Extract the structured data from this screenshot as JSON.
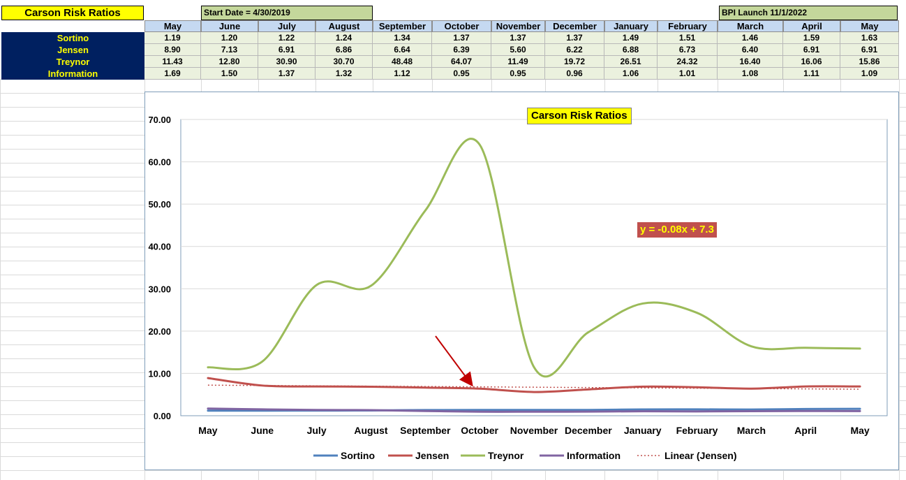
{
  "table": {
    "title": "Carson Risk Ratios",
    "start_note": "Start Date = 4/30/2019",
    "launch_note": "BPI Launch 11/1/2022",
    "months": [
      "May",
      "June",
      "July",
      "August",
      "September",
      "October",
      "November",
      "December",
      "January",
      "February",
      "March",
      "April",
      "May"
    ],
    "rows": [
      {
        "label": "Sortino",
        "values": [
          "1.19",
          "1.20",
          "1.22",
          "1.24",
          "1.34",
          "1.37",
          "1.37",
          "1.37",
          "1.49",
          "1.51",
          "1.46",
          "1.59",
          "1.63"
        ]
      },
      {
        "label": "Jensen",
        "values": [
          "8.90",
          "7.13",
          "6.91",
          "6.86",
          "6.64",
          "6.39",
          "5.60",
          "6.22",
          "6.88",
          "6.73",
          "6.40",
          "6.91",
          "6.91"
        ]
      },
      {
        "label": "Treynor",
        "values": [
          "11.43",
          "12.80",
          "30.90",
          "30.70",
          "48.48",
          "64.07",
          "11.49",
          "19.72",
          "26.51",
          "24.32",
          "16.40",
          "16.06",
          "15.86"
        ]
      },
      {
        "label": "Information",
        "values": [
          "1.69",
          "1.50",
          "1.37",
          "1.32",
          "1.12",
          "0.95",
          "0.95",
          "0.96",
          "1.06",
          "1.01",
          "1.08",
          "1.11",
          "1.09"
        ]
      }
    ]
  },
  "chart_data": {
    "type": "line",
    "title": "Carson Risk Ratios",
    "categories": [
      "May",
      "June",
      "July",
      "August",
      "September",
      "October",
      "November",
      "December",
      "January",
      "February",
      "March",
      "April",
      "May"
    ],
    "y_ticks": [
      "0.00",
      "10.00",
      "20.00",
      "30.00",
      "40.00",
      "50.00",
      "60.00",
      "70.00"
    ],
    "ylim": [
      0,
      70
    ],
    "grid": true,
    "legend_position": "bottom",
    "series": [
      {
        "name": "Sortino",
        "color": "#4f81bd",
        "values": [
          1.19,
          1.2,
          1.22,
          1.24,
          1.34,
          1.37,
          1.37,
          1.37,
          1.49,
          1.51,
          1.46,
          1.59,
          1.63
        ]
      },
      {
        "name": "Jensen",
        "color": "#c0504d",
        "values": [
          8.9,
          7.13,
          6.91,
          6.86,
          6.64,
          6.39,
          5.6,
          6.22,
          6.88,
          6.73,
          6.4,
          6.91,
          6.91
        ]
      },
      {
        "name": "Treynor",
        "color": "#9bbb59",
        "values": [
          11.43,
          12.8,
          30.9,
          30.7,
          48.48,
          64.07,
          11.49,
          19.72,
          26.51,
          24.32,
          16.4,
          16.06,
          15.86
        ]
      },
      {
        "name": "Information",
        "color": "#8064a2",
        "values": [
          1.69,
          1.5,
          1.37,
          1.32,
          1.12,
          0.95,
          0.95,
          0.96,
          1.06,
          1.01,
          1.08,
          1.11,
          1.09
        ]
      }
    ],
    "trendline": {
      "name": "Linear (Jensen)",
      "color": "#c0504d",
      "equation": "y = -0.08x + 7.3",
      "slope": -0.08,
      "intercept": 7.3
    }
  }
}
